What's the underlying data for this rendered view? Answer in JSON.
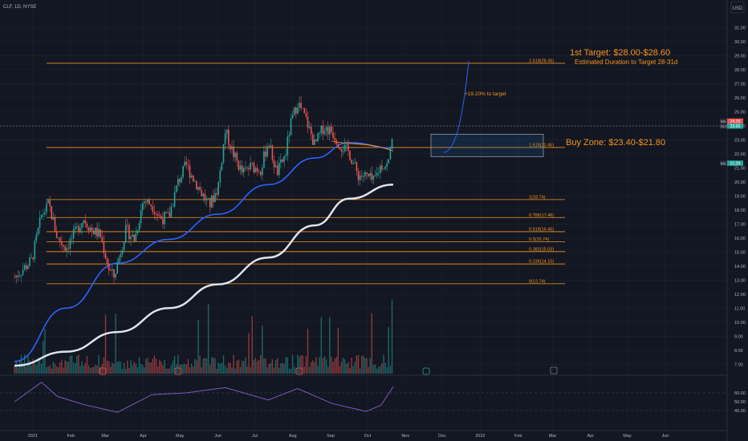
{
  "header": {
    "symbol_line": "CLF, 1D, NYSE"
  },
  "currency": "USD",
  "colors": {
    "bg": "#131722",
    "grid": "#1e222d",
    "up": "#26a69a",
    "down": "#ef5350",
    "fib": "#f7931e",
    "annot": "#f7931e",
    "ma50": "#2962ff",
    "ma200": "#e0e3eb",
    "rsi": "#7e57c2",
    "text": "#b2b5be"
  },
  "badges": [
    {
      "label": "MA",
      "value": "24.29",
      "color": "#ef5350",
      "price": 24.29
    },
    {
      "label": "CLF",
      "value": "23.99",
      "color": "#26a69a",
      "price": 23.99
    },
    {
      "label": "MA",
      "value": "21.29",
      "color": "#26a69a",
      "price": 21.29
    }
  ],
  "annotations": {
    "target_title": "1st Target: $28.00-$28.60",
    "target_duration": "Estimated Duration to Target 28-31d",
    "buy_zone": "Buy Zone: $23.40-$21.80",
    "pct_to_target": "+19.20% to target"
  },
  "chart_data": {
    "type": "line",
    "title": "",
    "price_axis": {
      "ylim": [
        6.5,
        32
      ],
      "ticks": [
        "31.00",
        "30.00",
        "29.00",
        "28.00",
        "27.00",
        "26.00",
        "25.00",
        "24.00",
        "23.00",
        "22.00",
        "21.00",
        "20.00",
        "19.00",
        "18.00",
        "17.00",
        "16.00",
        "15.00",
        "14.00",
        "13.00",
        "12.00",
        "11.00",
        "10.00",
        "9.00",
        "8.00",
        "7.00"
      ],
      "position": "right"
    },
    "rsi_axis": {
      "ticks": [
        "60.00",
        "50.00",
        "40.00"
      ]
    },
    "x_axis": {
      "ticks": [
        "2021",
        "Feb",
        "Mar",
        "Apr",
        "May",
        "Jun",
        "Jul",
        "Aug",
        "Sep",
        "Oct",
        "Nov",
        "Dec",
        "2022",
        "Feb",
        "Mar",
        "Apr",
        "May",
        "Jun"
      ]
    },
    "fib_levels": [
      {
        "label": "2.618(28.45)",
        "price": 28.45
      },
      {
        "label": "1.618(22.45)",
        "price": 22.45
      },
      {
        "label": "1(18.74)",
        "price": 18.74
      },
      {
        "label": "0.786(17.46)",
        "price": 17.46
      },
      {
        "label": "0.618(16.45)",
        "price": 16.45
      },
      {
        "label": "0.5(15.74)",
        "price": 15.74
      },
      {
        "label": "0.382(15.03)",
        "price": 15.03
      },
      {
        "label": "0.236(14.15)",
        "price": 14.15
      },
      {
        "label": "0(12.74)",
        "price": 12.74
      }
    ],
    "buy_zone": {
      "low": 21.8,
      "high": 23.4
    },
    "series": [
      {
        "name": "CLF",
        "kind": "price",
        "x": [
          "2020-12-17",
          "2020-12-31",
          "2021-01-08",
          "2021-01-14",
          "2021-01-21",
          "2021-01-28",
          "2021-02-04",
          "2021-02-11",
          "2021-02-18",
          "2021-02-25",
          "2021-03-04",
          "2021-03-08",
          "2021-03-11",
          "2021-03-18",
          "2021-03-25",
          "2021-04-01",
          "2021-04-08",
          "2021-04-15",
          "2021-04-22",
          "2021-04-29",
          "2021-05-06",
          "2021-05-11",
          "2021-05-18",
          "2021-05-25",
          "2021-06-01",
          "2021-06-07",
          "2021-06-14",
          "2021-06-21",
          "2021-06-28",
          "2021-07-06",
          "2021-07-12",
          "2021-07-19",
          "2021-07-26",
          "2021-07-30",
          "2021-08-05",
          "2021-08-12",
          "2021-08-19",
          "2021-08-26",
          "2021-09-02",
          "2021-09-09",
          "2021-09-16",
          "2021-09-23",
          "2021-09-30",
          "2021-10-06",
          "2021-10-12",
          "2021-10-18",
          "2021-10-22"
        ],
        "values": [
          13.2,
          14.4,
          17.6,
          18.4,
          16.0,
          15.3,
          16.3,
          17.4,
          16.6,
          16.2,
          13.8,
          13.2,
          14.2,
          16.6,
          15.9,
          18.7,
          18.4,
          17.4,
          17.5,
          19.9,
          21.2,
          20.4,
          19.3,
          18.3,
          19.6,
          23.6,
          21.9,
          20.6,
          21.1,
          20.9,
          22.9,
          20.6,
          21.9,
          24.0,
          25.7,
          24.4,
          22.6,
          23.9,
          23.6,
          22.6,
          22.1,
          20.5,
          20.4,
          20.0,
          21.2,
          21.2,
          24.0
        ]
      },
      {
        "name": "MA",
        "kind": "ma50",
        "x": [
          "2020-12-17",
          "2021-01-28",
          "2021-03-11",
          "2021-04-22",
          "2021-06-01",
          "2021-07-12",
          "2021-08-19",
          "2021-09-16",
          "2021-10-22"
        ],
        "values": [
          7.2,
          11.0,
          14.2,
          15.9,
          17.7,
          19.8,
          21.7,
          22.8,
          22.4
        ]
      },
      {
        "name": "MA",
        "kind": "ma200",
        "x": [
          "2020-12-17",
          "2021-01-28",
          "2021-03-11",
          "2021-04-22",
          "2021-06-01",
          "2021-07-12",
          "2021-08-19",
          "2021-09-16",
          "2021-10-22"
        ],
        "values": [
          6.9,
          7.9,
          9.3,
          11.0,
          12.7,
          14.6,
          16.9,
          18.8,
          19.8
        ]
      },
      {
        "name": "RSI",
        "kind": "rsi",
        "x": [
          "2020-12-17",
          "2021-01-08",
          "2021-01-21",
          "2021-02-11",
          "2021-03-11",
          "2021-04-08",
          "2021-05-06",
          "2021-06-07",
          "2021-07-12",
          "2021-08-05",
          "2021-09-02",
          "2021-09-30",
          "2021-10-12",
          "2021-10-22"
        ],
        "values": [
          50,
          72,
          56,
          47,
          38,
          58,
          60,
          66,
          52,
          65,
          48,
          39,
          46,
          67
        ]
      }
    ]
  }
}
